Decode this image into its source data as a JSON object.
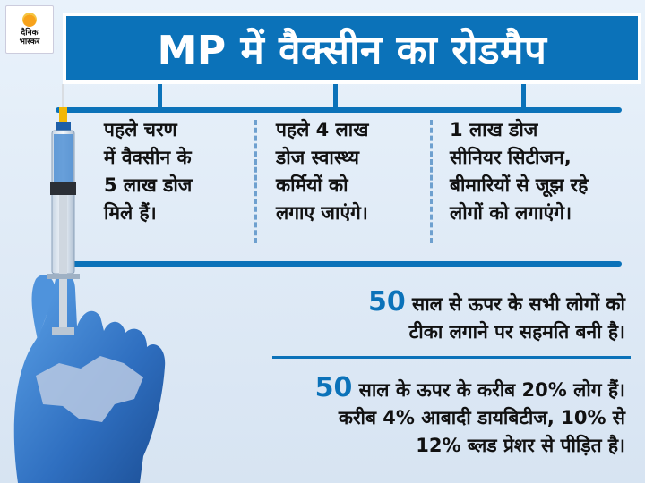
{
  "logo": {
    "line1": "दैनिक",
    "line2": "भास्कर"
  },
  "title": "MP में वैक्सीन का रोडमैप",
  "columns": [
    {
      "lines": [
        "पहले चरण",
        "में वैक्सीन के",
        "5 लाख डोज",
        "मिले हैं।"
      ]
    },
    {
      "lines": [
        "पहले 4 लाख",
        "डोज स्वास्थ्य",
        "कर्मियों को",
        "लगाए जाएंगे।"
      ]
    },
    {
      "lines": [
        "1 लाख डोज",
        "सीनियर सिटीजन,",
        "बीमारियों से जूझ रहे",
        "लोगों को लगाएंगे।"
      ]
    }
  ],
  "note1": {
    "number": "50",
    "line1_rest": "साल से ऊपर के सभी लोगों को",
    "line2": "टीका लगाने पर सहमति बनी है।"
  },
  "note2": {
    "number": "50",
    "line1_rest": "साल के ऊपर के करीब 20% लोग हैं।",
    "line2": "करीब 4% आबादी डायबिटीज, 10% से",
    "line3": "12% ब्लड प्रेशर से पीड़ित है।"
  },
  "colors": {
    "accent": "#0b72b9",
    "glove": "#2f6fc0",
    "syringe_tip": "#f2b705"
  },
  "icons": [
    "logo-sun-icon",
    "syringe-icon",
    "glove-hand-icon",
    "mp-map-icon"
  ]
}
